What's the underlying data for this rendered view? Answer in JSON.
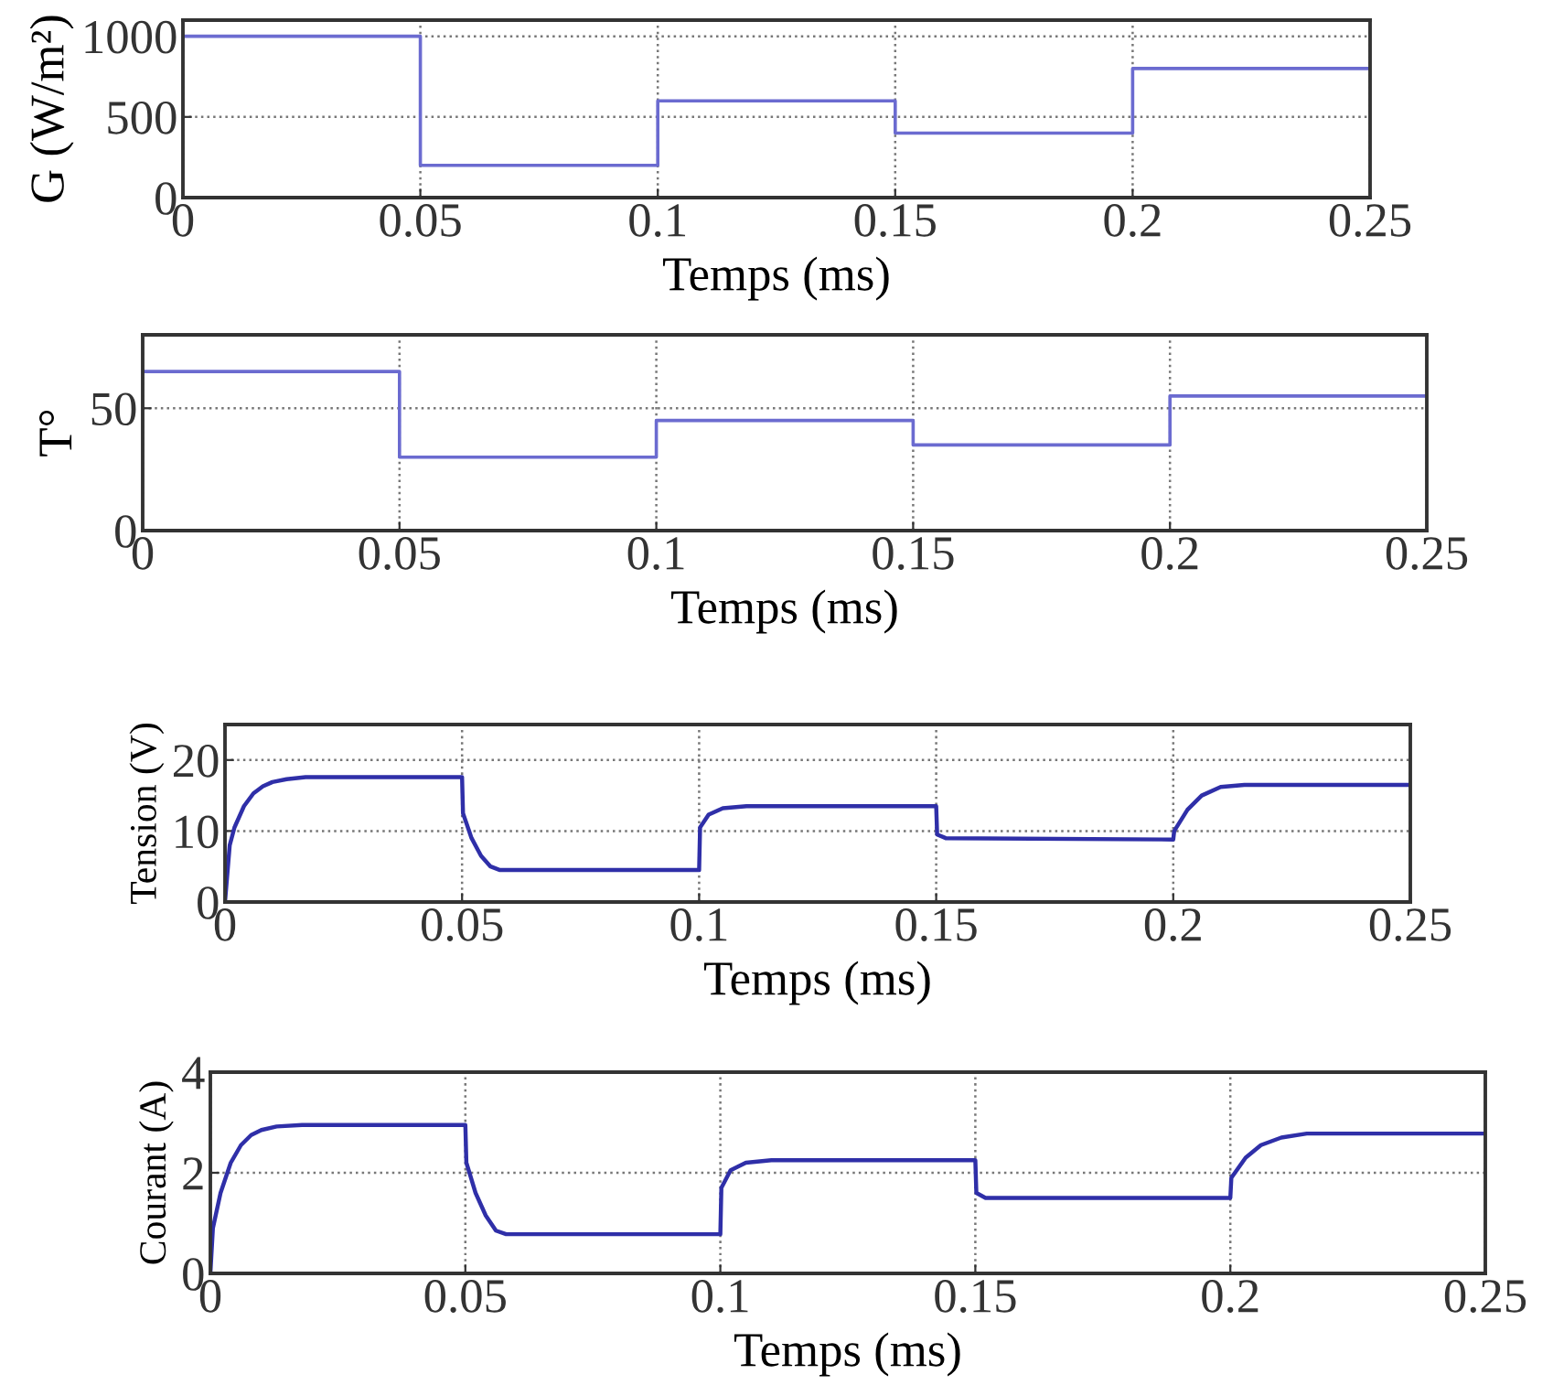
{
  "chart_data": [
    {
      "type": "step",
      "xlabel": "Temps (ms)",
      "ylabel": "G (W/m²)",
      "x": [
        0,
        0.05,
        0.1,
        0.15,
        0.2,
        0.25
      ],
      "series": [
        {
          "color": "#6b6bd0",
          "values": [
            1000,
            200,
            600,
            400,
            800,
            800
          ]
        }
      ],
      "xlim": [
        0,
        0.25
      ],
      "xticks": [
        0,
        0.05,
        0.1,
        0.15,
        0.2,
        0.25
      ],
      "ylim": [
        0,
        1100
      ],
      "yticks": [
        0,
        500,
        1000
      ],
      "grid": true,
      "line_style": "solid"
    },
    {
      "type": "step",
      "xlabel": "Temps (ms)",
      "ylabel": "T°",
      "x": [
        0,
        0.05,
        0.1,
        0.15,
        0.2,
        0.25
      ],
      "series": [
        {
          "color": "#6b6bd0",
          "values": [
            65,
            30,
            45,
            35,
            55,
            55
          ]
        }
      ],
      "xlim": [
        0,
        0.25
      ],
      "xticks": [
        0,
        0.05,
        0.1,
        0.15,
        0.2,
        0.25
      ],
      "ylim": [
        0,
        80
      ],
      "yticks": [
        0,
        50
      ],
      "grid": true,
      "line_style": "solid"
    },
    {
      "type": "line",
      "xlabel": "Temps (ms)",
      "ylabel": "Tension (V)",
      "x": [
        0,
        0.001,
        0.002,
        0.004,
        0.006,
        0.008,
        0.01,
        0.013,
        0.017,
        0.05,
        0.0502,
        0.052,
        0.054,
        0.056,
        0.058,
        0.1,
        0.1002,
        0.102,
        0.105,
        0.11,
        0.15,
        0.1502,
        0.152,
        0.2,
        0.2002,
        0.203,
        0.206,
        0.21,
        0.215,
        0.25
      ],
      "series": [
        {
          "color": "#2f2fa8",
          "values": [
            0,
            8,
            10.5,
            13.5,
            15.3,
            16.3,
            16.9,
            17.3,
            17.6,
            17.6,
            12.5,
            9,
            6.5,
            5,
            4.5,
            4.5,
            10.5,
            12.3,
            13.2,
            13.5,
            13.5,
            9.5,
            9,
            8.8,
            10,
            13,
            15,
            16.2,
            16.5,
            16.5
          ]
        }
      ],
      "xlim": [
        0,
        0.25
      ],
      "xticks": [
        0,
        0.05,
        0.1,
        0.15,
        0.2,
        0.25
      ],
      "ylim": [
        0,
        25
      ],
      "yticks": [
        0,
        10,
        20
      ],
      "grid": true,
      "line_style": "solid"
    },
    {
      "type": "line",
      "xlabel": "Temps (ms)",
      "ylabel": "Courant (A)",
      "x": [
        0,
        0.0005,
        0.002,
        0.004,
        0.006,
        0.008,
        0.01,
        0.013,
        0.018,
        0.05,
        0.0502,
        0.052,
        0.054,
        0.056,
        0.058,
        0.1,
        0.1002,
        0.102,
        0.105,
        0.11,
        0.15,
        0.1502,
        0.152,
        0.2,
        0.2002,
        0.203,
        0.206,
        0.21,
        0.215,
        0.25
      ],
      "series": [
        {
          "color": "#2f2fa8",
          "values": [
            0,
            0.9,
            1.6,
            2.2,
            2.55,
            2.75,
            2.85,
            2.92,
            2.95,
            2.95,
            2.2,
            1.6,
            1.15,
            0.85,
            0.78,
            0.78,
            1.7,
            2.05,
            2.2,
            2.25,
            2.25,
            1.6,
            1.5,
            1.5,
            1.9,
            2.3,
            2.55,
            2.7,
            2.78,
            2.78
          ]
        }
      ],
      "xlim": [
        0,
        0.25
      ],
      "xticks": [
        0,
        0.05,
        0.1,
        0.15,
        0.2,
        0.25
      ],
      "ylim": [
        0,
        4
      ],
      "yticks": [
        0,
        2,
        4
      ],
      "grid": true,
      "line_style": "solid"
    }
  ]
}
